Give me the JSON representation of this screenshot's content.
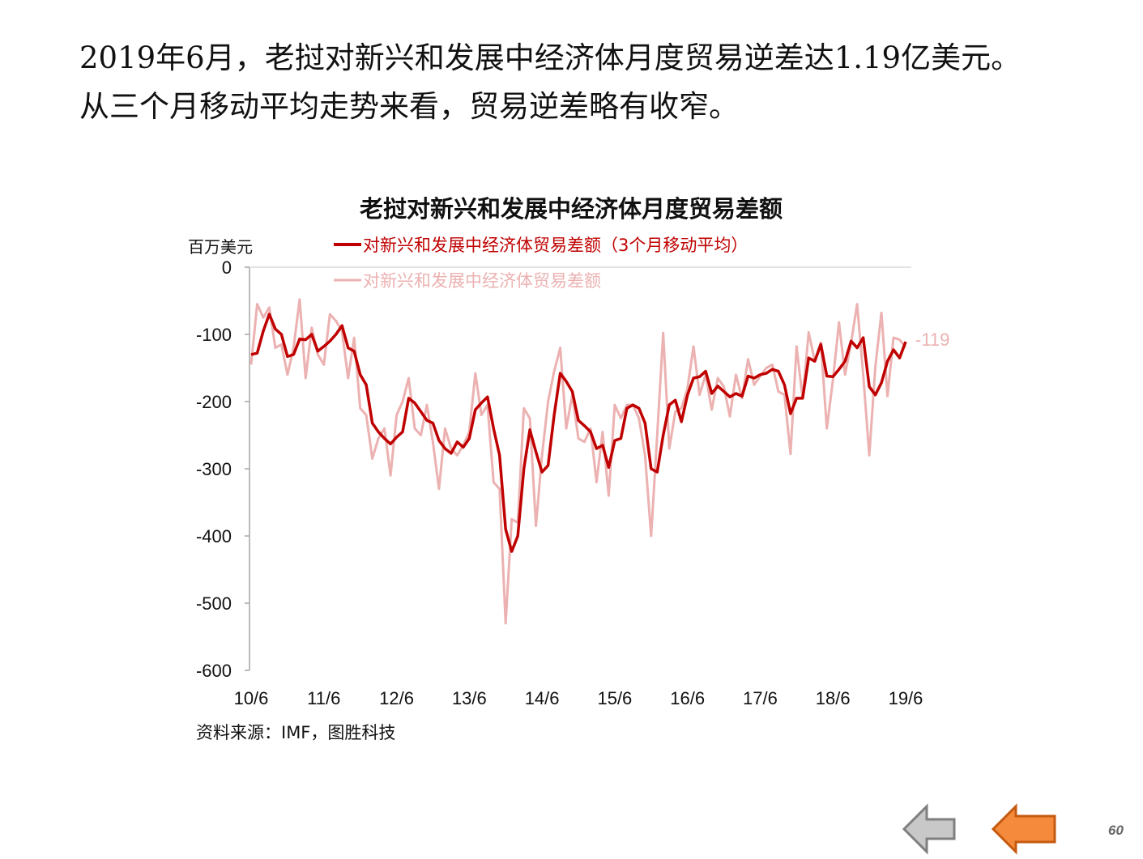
{
  "headline": {
    "line1": "2019年6月，老挝对新兴和发展中经济体月度贸易逆差达1.19亿美元。",
    "line2": "从三个月移动平均走势来看，贸易逆差略有收窄。"
  },
  "chart_data": {
    "type": "line",
    "title": "老挝对新兴和发展中经济体月度贸易差额",
    "ylabel": "百万美元",
    "ylim": [
      -600,
      0
    ],
    "yticks": [
      0,
      -100,
      -200,
      -300,
      -400,
      -500,
      -600
    ],
    "xticks": [
      "10/6",
      "11/6",
      "12/6",
      "13/6",
      "14/6",
      "15/6",
      "16/6",
      "17/6",
      "18/6",
      "19/6"
    ],
    "grid": false,
    "legend_position": "top",
    "annotation": "-119",
    "colors": {
      "ma": "#c00000",
      "monthly": "#ecb1b1"
    },
    "series": [
      {
        "name": "对新兴和发展中经济体贸易差额（3个月移动平均）",
        "key": "ma",
        "values": [
          -130,
          -128,
          -95,
          -70,
          -92,
          -100,
          -133,
          -130,
          -107,
          -108,
          -100,
          -125,
          -118,
          -110,
          -100,
          -87,
          -120,
          -125,
          -160,
          -175,
          -232,
          -245,
          -255,
          -263,
          -253,
          -245,
          -195,
          -202,
          -215,
          -228,
          -232,
          -258,
          -270,
          -277,
          -260,
          -268,
          -255,
          -212,
          -202,
          -193,
          -240,
          -280,
          -390,
          -423,
          -400,
          -300,
          -242,
          -275,
          -305,
          -295,
          -220,
          -158,
          -170,
          -185,
          -228,
          -236,
          -245,
          -270,
          -265,
          -298,
          -258,
          -255,
          -210,
          -205,
          -210,
          -232,
          -300,
          -305,
          -250,
          -205,
          -198,
          -230,
          -190,
          -165,
          -163,
          -155,
          -188,
          -177,
          -185,
          -193,
          -188,
          -192,
          -162,
          -165,
          -160,
          -158,
          -152,
          -155,
          -175,
          -218,
          -195,
          -195,
          -135,
          -140,
          -115,
          -162,
          -163,
          -152,
          -140,
          -110,
          -120,
          -105,
          -178,
          -190,
          -172,
          -140,
          -123,
          -135,
          -111
        ]
      },
      {
        "name": "对新兴和发展中经济体贸易差额",
        "key": "monthly",
        "values": [
          -145,
          -55,
          -75,
          -60,
          -120,
          -115,
          -160,
          -120,
          -48,
          -165,
          -90,
          -130,
          -145,
          -70,
          -80,
          -95,
          -165,
          -105,
          -210,
          -220,
          -285,
          -255,
          -240,
          -310,
          -220,
          -200,
          -165,
          -240,
          -250,
          -205,
          -260,
          -330,
          -240,
          -270,
          -280,
          -265,
          -245,
          -158,
          -220,
          -205,
          -320,
          -330,
          -530,
          -375,
          -380,
          -210,
          -225,
          -385,
          -280,
          -200,
          -155,
          -120,
          -240,
          -190,
          -255,
          -260,
          -240,
          -320,
          -245,
          -340,
          -205,
          -225,
          -205,
          -205,
          -225,
          -280,
          -400,
          -250,
          -98,
          -270,
          -215,
          -210,
          -180,
          -118,
          -190,
          -160,
          -212,
          -165,
          -178,
          -222,
          -160,
          -195,
          -137,
          -175,
          -162,
          -150,
          -145,
          -185,
          -190,
          -278,
          -118,
          -195,
          -97,
          -140,
          -112,
          -240,
          -168,
          -82,
          -160,
          -112,
          -55,
          -160,
          -280,
          -148,
          -68,
          -192,
          -105,
          -108,
          -119
        ]
      }
    ]
  },
  "source_note": "资料来源：IMF，图胜科技",
  "nav": {
    "prev_icon": "arrow-left-gray-icon",
    "next_icon": "arrow-left-orange-icon"
  },
  "page_number": "60"
}
